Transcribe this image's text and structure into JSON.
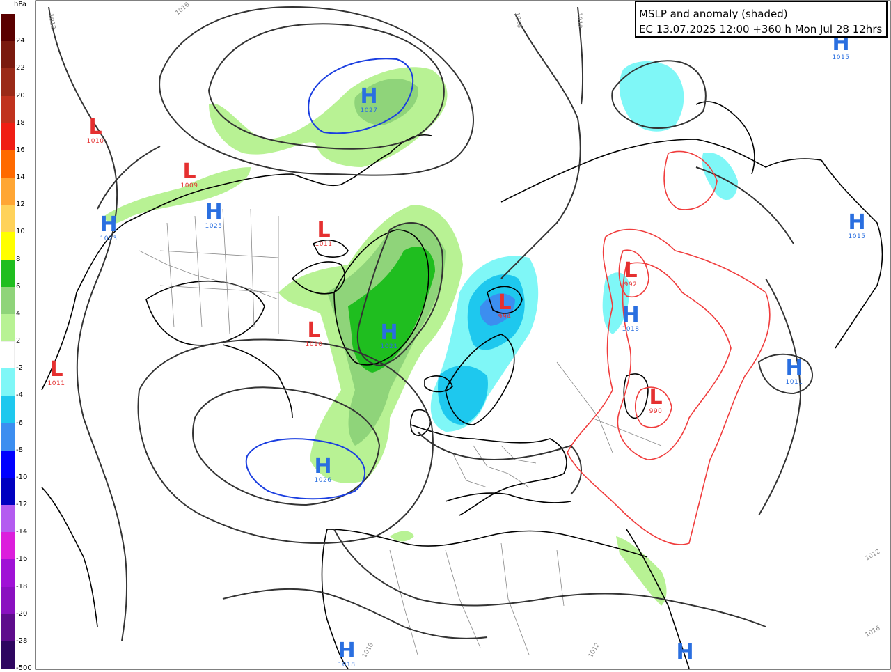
{
  "legend": {
    "unit": "hPa",
    "bins": [
      {
        "label": "24",
        "color": "#5a0000"
      },
      {
        "label": "22",
        "color": "#7a1a0e"
      },
      {
        "label": "20",
        "color": "#9a2a18"
      },
      {
        "label": "18",
        "color": "#c0321e"
      },
      {
        "label": "16",
        "color": "#f01e14"
      },
      {
        "label": "14",
        "color": "#ff6a00"
      },
      {
        "label": "12",
        "color": "#ffa634"
      },
      {
        "label": "10",
        "color": "#ffd25a"
      },
      {
        "label": "8",
        "color": "#ffff00"
      },
      {
        "label": "6",
        "color": "#1fbe1f"
      },
      {
        "label": "4",
        "color": "#8fd47a"
      },
      {
        "label": "2",
        "color": "#b8f294"
      },
      {
        "label": "-2",
        "color": "#ffffff"
      },
      {
        "label": "-4",
        "color": "#7ff7f7"
      },
      {
        "label": "-6",
        "color": "#1ec8ee"
      },
      {
        "label": "-8",
        "color": "#3c8ef0"
      },
      {
        "label": "-10",
        "color": "#0000ff"
      },
      {
        "label": "-12",
        "color": "#0000c0"
      },
      {
        "label": "-14",
        "color": "#b45cf0"
      },
      {
        "label": "-16",
        "color": "#dc1edc"
      },
      {
        "label": "-18",
        "color": "#a012d6"
      },
      {
        "label": "-20",
        "color": "#8a10c0"
      },
      {
        "label": "-28",
        "color": "#5e0c8c"
      },
      {
        "label": "-500",
        "color": "#2e0660"
      }
    ]
  },
  "title": {
    "line1": "MSLP and anomaly (shaded)",
    "line2": "EC 13.07.2025 12:00 +360 h Mon Jul 28 12hrs"
  },
  "pressure_systems": [
    {
      "type": "H",
      "value": "1027"
    },
    {
      "type": "H",
      "value": "1015"
    },
    {
      "type": "L",
      "value": "1010"
    },
    {
      "type": "L",
      "value": "1009"
    },
    {
      "type": "H",
      "value": "1025"
    },
    {
      "type": "H",
      "value": "1023"
    },
    {
      "type": "L",
      "value": "1011"
    },
    {
      "type": "L",
      "value": "1010"
    },
    {
      "type": "H",
      "value": "1021"
    },
    {
      "type": "L",
      "value": "1011"
    },
    {
      "type": "H",
      "value": "1026"
    },
    {
      "type": "L",
      "value": "994"
    },
    {
      "type": "L",
      "value": "992"
    },
    {
      "type": "H",
      "value": "1018"
    },
    {
      "type": "L",
      "value": "990"
    },
    {
      "type": "H",
      "value": "1011"
    },
    {
      "type": "H",
      "value": "1015"
    },
    {
      "type": "H",
      "value": "1018"
    },
    {
      "type": "H",
      "value": ""
    }
  ],
  "isobar_labels": [
    "1012",
    "1016",
    "1012",
    "1016",
    "1012",
    "1016",
    "1012",
    "1016"
  ],
  "colors": {
    "isobar": "#333333",
    "high_contour": "#1a3ee0",
    "low_contour": "#f03c3c",
    "coastline": "#000000",
    "border": "#888888"
  }
}
